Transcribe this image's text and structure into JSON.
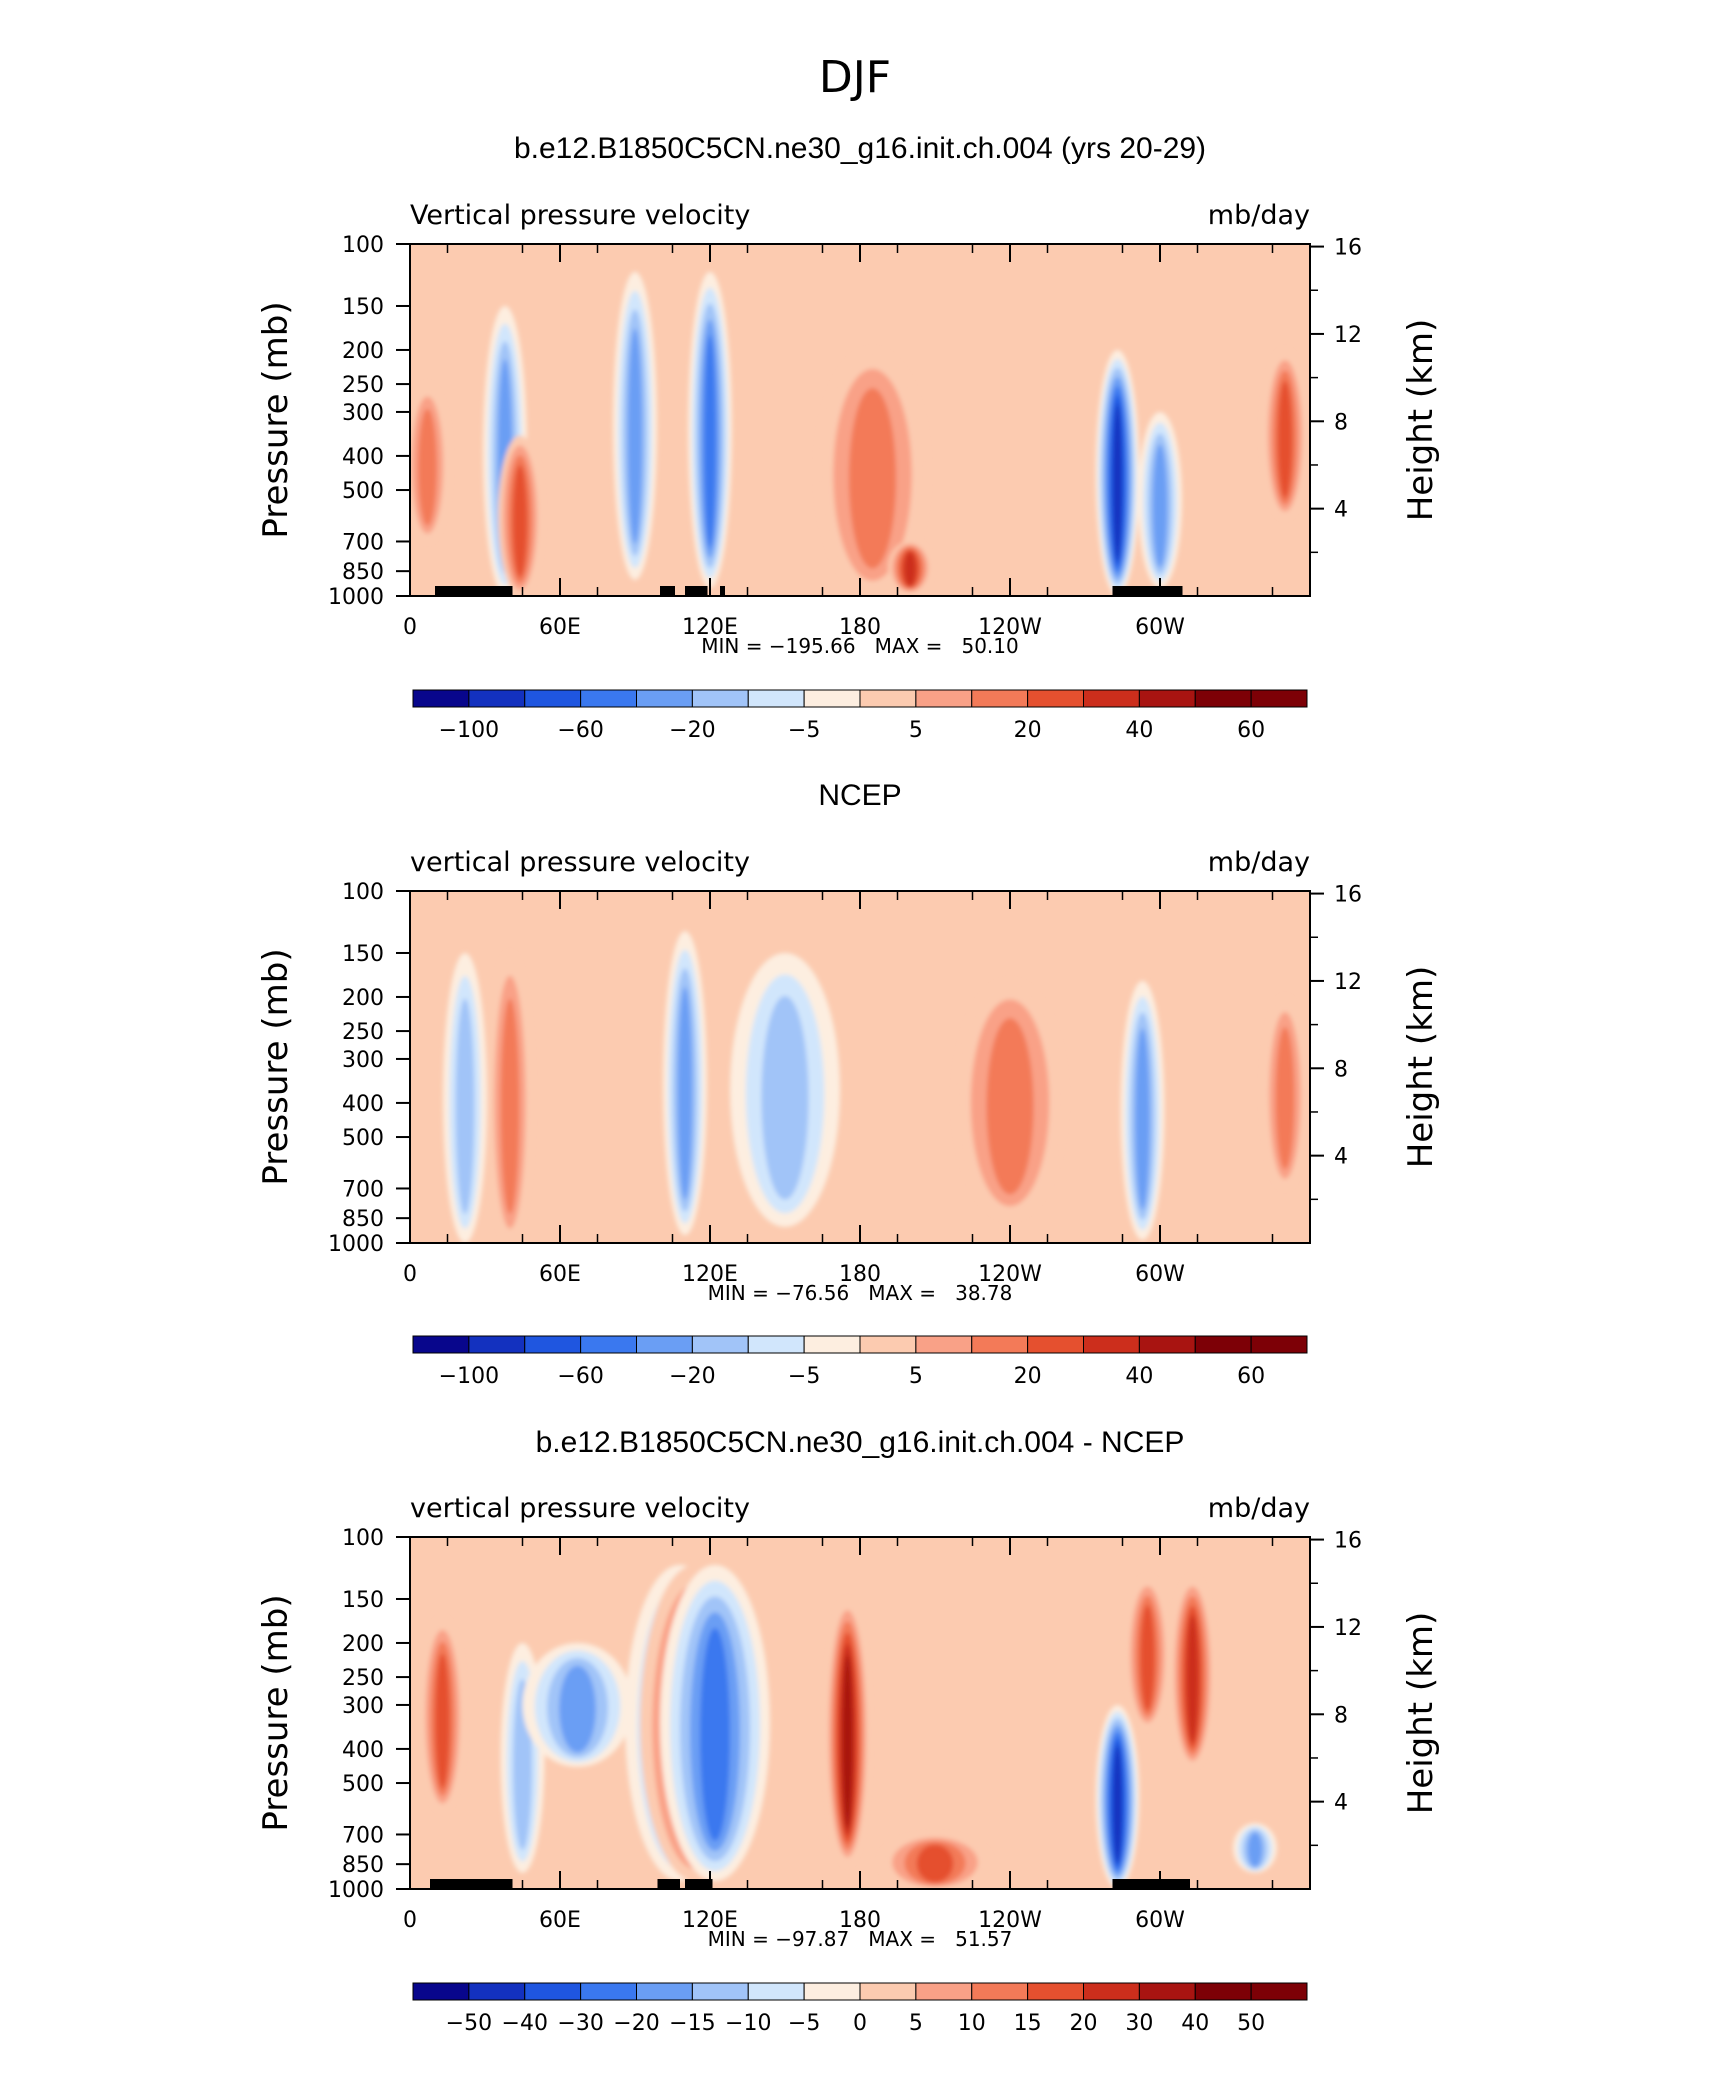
{
  "figure_title": "DJF",
  "panel_titles": [
    "b.e12.B1850C5CN.ne30_g16.init.ch.004 (yrs 20-29)",
    "NCEP",
    "b.e12.B1850C5CN.ne30_g16.init.ch.004 - NCEP"
  ],
  "chart_data": [
    {
      "type": "heatmap",
      "title": "b.e12.B1850C5CN.ne30_g16.init.ch.004 (yrs 20-29)",
      "left_string": "Vertical pressure velocity",
      "right_string": "mb/day",
      "ylabel": "Pressure (mb)",
      "y2label": "Height (km)",
      "x_ticks": [
        "0",
        "60E",
        "120E",
        "180",
        "120W",
        "60W"
      ],
      "y_ticks": [
        "100",
        "150",
        "200",
        "250",
        "300",
        "400",
        "500",
        "700",
        "850",
        "1000"
      ],
      "y2_ticks": [
        "16",
        "12",
        "8",
        "4"
      ],
      "stats": "MIN = −195.66   MAX =   50.10",
      "colorbar_labels": [
        "−100",
        "−60",
        "−20",
        "−5",
        "5",
        "20",
        "40",
        "60"
      ],
      "colorbar_levels": [
        -100,
        -80,
        -60,
        -40,
        -20,
        -10,
        -5,
        0,
        5,
        10,
        20,
        30,
        40,
        50,
        60
      ],
      "x_range": [
        0,
        360
      ],
      "y_range": [
        1000,
        100
      ],
      "features": [
        {
          "lon": 7,
          "p_top": 250,
          "p_bot": 700,
          "value": 20
        },
        {
          "lon": 38,
          "p_top": 150,
          "p_bot": 1000,
          "value": -40
        },
        {
          "lon": 44,
          "p_top": 350,
          "p_bot": 1000,
          "value": 30
        },
        {
          "lon": 90,
          "p_top": 120,
          "p_bot": 900,
          "value": -45
        },
        {
          "lon": 120,
          "p_top": 120,
          "p_bot": 950,
          "value": -60
        },
        {
          "lon": 185,
          "p_top": 200,
          "p_bot": 980,
          "value": 25
        },
        {
          "lon": 200,
          "p_top": 700,
          "p_bot": 980,
          "value": 40
        },
        {
          "lon": 283,
          "p_top": 200,
          "p_bot": 1000,
          "value": -150
        },
        {
          "lon": 300,
          "p_top": 300,
          "p_bot": 950,
          "value": -40
        },
        {
          "lon": 350,
          "p_top": 200,
          "p_bot": 600,
          "value": 30
        }
      ],
      "topography": [
        [
          10,
          41
        ],
        [
          100,
          106
        ],
        [
          110,
          119
        ],
        [
          124,
          126
        ],
        [
          281,
          309
        ]
      ]
    },
    {
      "type": "heatmap",
      "title": "NCEP",
      "left_string": "vertical pressure velocity",
      "right_string": "mb/day",
      "ylabel": "Pressure (mb)",
      "y2label": "Height (km)",
      "x_ticks": [
        "0",
        "60E",
        "120E",
        "180",
        "120W",
        "60W"
      ],
      "y_ticks": [
        "100",
        "150",
        "200",
        "250",
        "300",
        "400",
        "500",
        "700",
        "850",
        "1000"
      ],
      "y2_ticks": [
        "16",
        "12",
        "8",
        "4"
      ],
      "stats": "MIN = −76.56   MAX =   38.78",
      "colorbar_labels": [
        "−100",
        "−60",
        "−20",
        "−5",
        "5",
        "20",
        "40",
        "60"
      ],
      "colorbar_levels": [
        -100,
        -80,
        -60,
        -40,
        -20,
        -10,
        -5,
        0,
        5,
        10,
        20,
        30,
        40,
        50,
        60
      ],
      "x_range": [
        0,
        360
      ],
      "y_range": [
        1000,
        100
      ],
      "features": [
        {
          "lon": 22,
          "p_top": 150,
          "p_bot": 1000,
          "value": -20
        },
        {
          "lon": 40,
          "p_top": 150,
          "p_bot": 1000,
          "value": 25
        },
        {
          "lon": 110,
          "p_top": 130,
          "p_bot": 950,
          "value": -45
        },
        {
          "lon": 150,
          "p_top": 150,
          "p_bot": 900,
          "value": -35
        },
        {
          "lon": 240,
          "p_top": 180,
          "p_bot": 850,
          "value": 25
        },
        {
          "lon": 293,
          "p_top": 180,
          "p_bot": 980,
          "value": -45
        },
        {
          "lon": 350,
          "p_top": 200,
          "p_bot": 700,
          "value": 25
        }
      ],
      "topography": []
    },
    {
      "type": "heatmap",
      "title": "b.e12.B1850C5CN.ne30_g16.init.ch.004 - NCEP",
      "left_string": "vertical pressure velocity",
      "right_string": "mb/day",
      "ylabel": "Pressure (mb)",
      "y2label": "Height (km)",
      "x_ticks": [
        "0",
        "60E",
        "120E",
        "180",
        "120W",
        "60W"
      ],
      "y_ticks": [
        "100",
        "150",
        "200",
        "250",
        "300",
        "400",
        "500",
        "700",
        "850",
        "1000"
      ],
      "y2_ticks": [
        "16",
        "12",
        "8",
        "4"
      ],
      "stats": "MIN = −97.87   MAX =   51.57",
      "colorbar_labels": [
        "−50",
        "−40",
        "−30",
        "−20",
        "−15",
        "−10",
        "−5",
        "0",
        "5",
        "10",
        "15",
        "20",
        "30",
        "40",
        "50"
      ],
      "colorbar_levels": [
        -50,
        -40,
        -30,
        -20,
        -15,
        -10,
        -5,
        0,
        5,
        10,
        15,
        20,
        30,
        40,
        50
      ],
      "x_range": [
        0,
        360
      ],
      "y_range": [
        1000,
        100
      ],
      "features": [
        {
          "lon": 13,
          "p_top": 170,
          "p_bot": 600,
          "value": 20
        },
        {
          "lon": 45,
          "p_top": 200,
          "p_bot": 900,
          "value": -15
        },
        {
          "lon": 67,
          "p_top": 200,
          "p_bot": 450,
          "value": -20
        },
        {
          "lon": 108,
          "p_top": 120,
          "p_bot": 950,
          "value": -25
        },
        {
          "lon": 114,
          "p_top": 120,
          "p_bot": 950,
          "value": 20
        },
        {
          "lon": 122,
          "p_top": 120,
          "p_bot": 950,
          "value": -35
        },
        {
          "lon": 175,
          "p_top": 150,
          "p_bot": 850,
          "value": 40
        },
        {
          "lon": 210,
          "p_top": 700,
          "p_bot": 1000,
          "value": 25
        },
        {
          "lon": 283,
          "p_top": 300,
          "p_bot": 1000,
          "value": -60
        },
        {
          "lon": 295,
          "p_top": 130,
          "p_bot": 350,
          "value": 25
        },
        {
          "lon": 313,
          "p_top": 130,
          "p_bot": 450,
          "value": 30
        },
        {
          "lon": 338,
          "p_top": 650,
          "p_bot": 900,
          "value": -25
        }
      ],
      "topography": [
        [
          8,
          41
        ],
        [
          99,
          108
        ],
        [
          110,
          121
        ],
        [
          281,
          312
        ]
      ]
    }
  ],
  "colors": {
    "palette": [
      "#08068c",
      "#1331bf",
      "#1f56e0",
      "#3a78ef",
      "#6a9ef4",
      "#a1c4f8",
      "#d1e6fc",
      "#fdeee0",
      "#fccbb0",
      "#f9a187",
      "#f37a58",
      "#e5502f",
      "#cc2e1c",
      "#a81411",
      "#7d0006"
    ]
  }
}
